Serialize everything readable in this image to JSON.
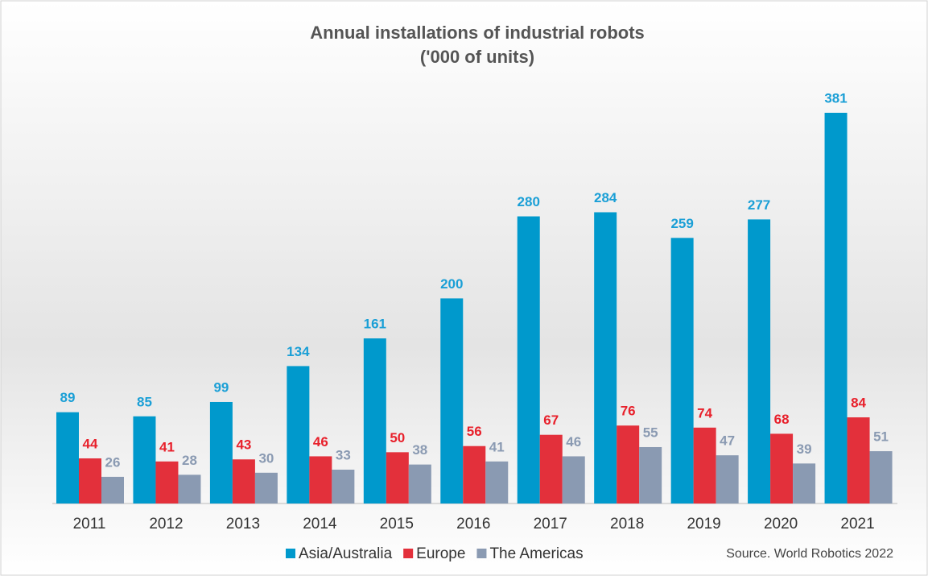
{
  "chart_data": {
    "type": "bar",
    "title": "Annual installations of industrial robots",
    "subtitle": "('000 of units)",
    "source": "Source. World Robotics 2022",
    "categories": [
      "2011",
      "2012",
      "2013",
      "2014",
      "2015",
      "2016",
      "2017",
      "2018",
      "2019",
      "2020",
      "2021"
    ],
    "series": [
      {
        "name": "Asia/Australia",
        "color": "#0099cc",
        "label_color": "#1a9fd6",
        "values": [
          89,
          85,
          99,
          134,
          161,
          200,
          280,
          284,
          259,
          277,
          381
        ]
      },
      {
        "name": "Europe",
        "color": "#e3303b",
        "label_color": "#e8202b",
        "values": [
          44,
          41,
          43,
          46,
          50,
          56,
          67,
          76,
          74,
          68,
          84
        ]
      },
      {
        "name": "The Americas",
        "color": "#8a9ab2",
        "label_color": "#8a9ab2",
        "values": [
          26,
          28,
          30,
          33,
          38,
          41,
          46,
          55,
          47,
          39,
          51
        ]
      }
    ],
    "legend": "bottom"
  }
}
